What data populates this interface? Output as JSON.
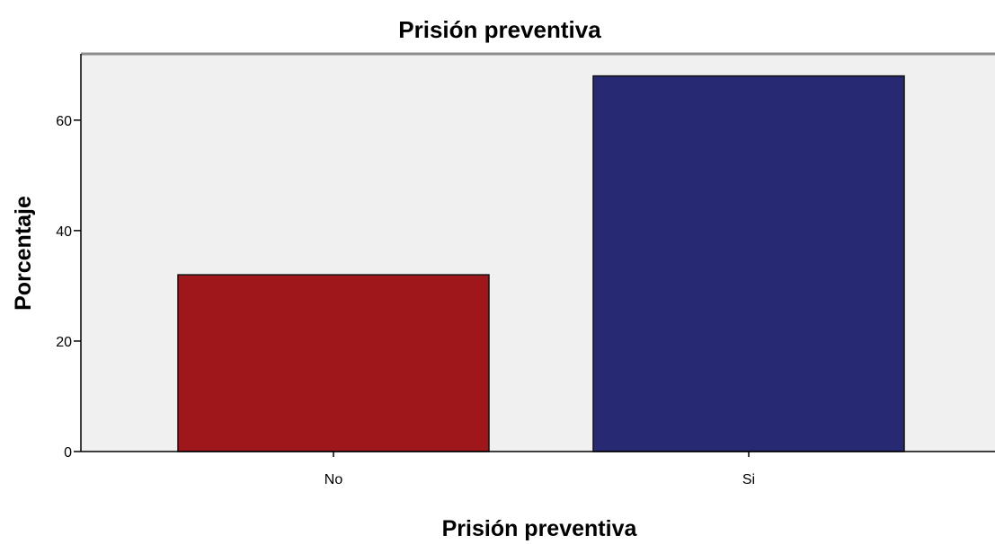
{
  "chart_data": {
    "type": "bar",
    "title": "Prisión preventiva",
    "xlabel": "Prisión preventiva",
    "ylabel": "Porcentaje",
    "categories": [
      "No",
      "Si"
    ],
    "values": [
      32,
      68
    ],
    "ylim": [
      0,
      72
    ],
    "yticks": [
      0,
      20,
      40,
      60
    ],
    "colors": [
      "#a0171b",
      "#272a72"
    ],
    "plot_background": "#f0f0f0",
    "grid": false
  }
}
